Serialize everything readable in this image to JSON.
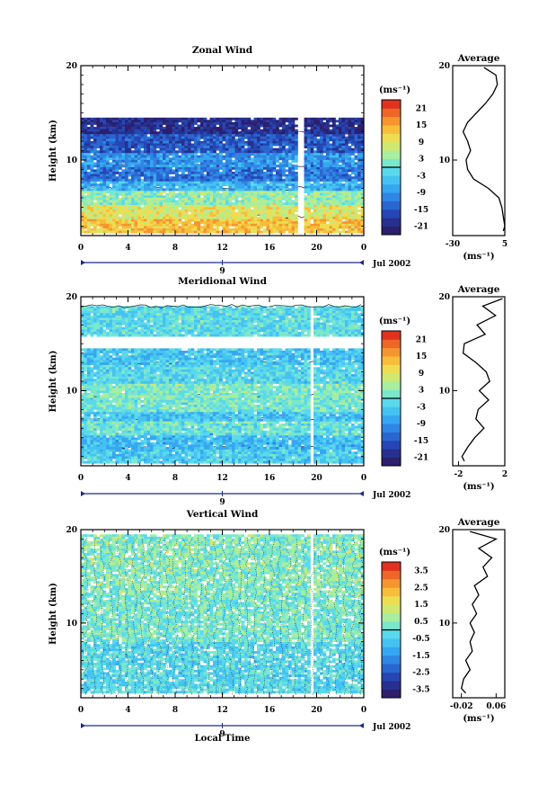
{
  "chart_data": [
    {
      "type": "heatmap",
      "title": "Zonal Wind",
      "ylabel": "Height (km)",
      "xlabel": "",
      "x_ticks": [
        "0",
        "4",
        "8",
        "12",
        "16",
        "20",
        "0"
      ],
      "y_ticks": [
        "10",
        "20"
      ],
      "ylim": [
        2,
        20
      ],
      "xlim": [
        0,
        24
      ],
      "date_ticks": [
        "9"
      ],
      "date_label": "Jul 2002",
      "colorbar": {
        "unit": "(ms⁻¹)",
        "ticks": [
          "21",
          "15",
          "9",
          "3",
          "-3",
          "-9",
          "-15",
          "-21"
        ],
        "range": [
          -24,
          24
        ],
        "zero_line": true
      },
      "pattern": [
        {
          "from_km": 2.5,
          "to_km": 4.0,
          "value_ms": 13
        },
        {
          "from_km": 4.0,
          "to_km": 5.5,
          "value_ms": 9
        },
        {
          "from_km": 5.5,
          "to_km": 7.0,
          "value_ms": 3
        },
        {
          "from_km": 7.0,
          "to_km": 8.0,
          "value_ms": -6
        },
        {
          "from_km": 8.0,
          "to_km": 9.5,
          "value_ms": -12
        },
        {
          "from_km": 9.5,
          "to_km": 11.0,
          "value_ms": -9
        },
        {
          "from_km": 11.0,
          "to_km": 13.0,
          "value_ms": -15
        },
        {
          "from_km": 13.0,
          "to_km": 14.5,
          "value_ms": -20
        }
      ],
      "gap_local_time": 18.5,
      "profile": {
        "title": "Average",
        "xlabel": "(ms⁻¹)",
        "x_ticks": [
          "-30",
          "5"
        ],
        "xlim": [
          -30,
          5
        ],
        "y_ticks": [
          "10",
          "20"
        ],
        "heights_km": [
          2.5,
          3,
          4,
          5,
          6,
          7,
          8,
          9,
          10,
          11,
          12,
          13,
          14,
          15,
          16,
          17,
          18,
          19,
          19.8
        ],
        "values_ms": [
          4,
          5,
          4,
          3,
          1,
          -6,
          -16,
          -20,
          -21,
          -18,
          -20,
          -23,
          -20,
          -14,
          -8,
          -3,
          0,
          -1,
          -9
        ]
      }
    },
    {
      "type": "heatmap",
      "title": "Meridional Wind",
      "ylabel": "Height (km)",
      "xlabel": "",
      "x_ticks": [
        "0",
        "4",
        "8",
        "12",
        "16",
        "20",
        "0"
      ],
      "y_ticks": [
        "10",
        "20"
      ],
      "ylim": [
        2,
        20
      ],
      "xlim": [
        0,
        24
      ],
      "date_ticks": [
        "9"
      ],
      "date_label": "Jul 2002",
      "colorbar": {
        "unit": "(ms⁻¹)",
        "ticks": [
          "21",
          "15",
          "9",
          "3",
          "-3",
          "-9",
          "-15",
          "-21"
        ],
        "range": [
          -24,
          24
        ],
        "zero_line": true
      },
      "pattern": [
        {
          "from_km": 2.5,
          "to_km": 4.0,
          "value_ms": -3
        },
        {
          "from_km": 4.0,
          "to_km": 5.5,
          "value_ms": -5
        },
        {
          "from_km": 5.5,
          "to_km": 7.0,
          "value_ms": 0
        },
        {
          "from_km": 7.0,
          "to_km": 8.0,
          "value_ms": -4
        },
        {
          "from_km": 8.0,
          "to_km": 9.5,
          "value_ms": 1
        },
        {
          "from_km": 9.5,
          "to_km": 11.0,
          "value_ms": 2
        },
        {
          "from_km": 11.0,
          "to_km": 13.0,
          "value_ms": -2
        },
        {
          "from_km": 13.0,
          "to_km": 14.5,
          "value_ms": -4
        },
        {
          "from_km": 16.0,
          "to_km": 19.0,
          "value_ms": -1
        }
      ],
      "gap_local_time": 19.5,
      "profile": {
        "title": "Average",
        "xlabel": "(ms⁻¹)",
        "x_ticks": [
          "-2",
          "2"
        ],
        "xlim": [
          -2.5,
          2
        ],
        "y_ticks": [
          "10",
          "20"
        ],
        "heights_km": [
          2.5,
          3,
          4,
          5,
          6,
          7,
          8,
          9,
          10,
          11,
          12,
          13,
          14,
          15,
          16,
          17,
          18,
          19,
          19.8
        ],
        "values_ms": [
          -1.5,
          -1.7,
          -1.2,
          -0.6,
          0.2,
          -0.5,
          -0.3,
          0.6,
          -0.2,
          0.7,
          0.4,
          -0.5,
          -1.6,
          -1.5,
          0.3,
          -0.4,
          1.2,
          0.1,
          1.8
        ]
      }
    },
    {
      "type": "heatmap",
      "title": "Vertical Wind",
      "ylabel": "Height (km)",
      "xlabel": "Local Time",
      "x_ticks": [
        "0",
        "4",
        "8",
        "12",
        "16",
        "20",
        "0"
      ],
      "y_ticks": [
        "10",
        "20"
      ],
      "ylim": [
        2,
        20
      ],
      "xlim": [
        0,
        24
      ],
      "date_ticks": [
        "9"
      ],
      "date_label": "Jul 2002",
      "colorbar": {
        "unit": "(ms⁻¹)",
        "ticks": [
          "3.5",
          "2.5",
          "1.5",
          "0.5",
          "-0.5",
          "-1.5",
          "-2.5",
          "-3.5"
        ],
        "range": [
          -4,
          4
        ],
        "zero_line": true
      },
      "pattern": [
        {
          "from_km": 2.5,
          "to_km": 8.0,
          "value_ms": -0.3
        },
        {
          "from_km": 8.0,
          "to_km": 13.0,
          "value_ms": 0.2
        },
        {
          "from_km": 13.0,
          "to_km": 19.5,
          "value_ms": 0.4
        }
      ],
      "gap_local_time": 19.5,
      "profile": {
        "title": "Average",
        "xlabel": "(ms⁻¹)",
        "x_ticks": [
          "-0.02",
          "0.06"
        ],
        "xlim": [
          -0.04,
          0.08
        ],
        "y_ticks": [
          "10",
          "20"
        ],
        "heights_km": [
          2.5,
          3,
          4,
          5,
          6,
          7,
          8,
          9,
          10,
          11,
          12,
          13,
          14,
          15,
          16,
          17,
          18,
          19,
          19.8
        ],
        "values_ms": [
          -0.01,
          -0.02,
          -0.015,
          0.0,
          -0.01,
          0.005,
          0.0,
          0.01,
          0.0,
          0.015,
          0.005,
          0.02,
          0.01,
          0.04,
          0.03,
          0.05,
          0.02,
          0.06,
          0.0
        ]
      }
    }
  ]
}
